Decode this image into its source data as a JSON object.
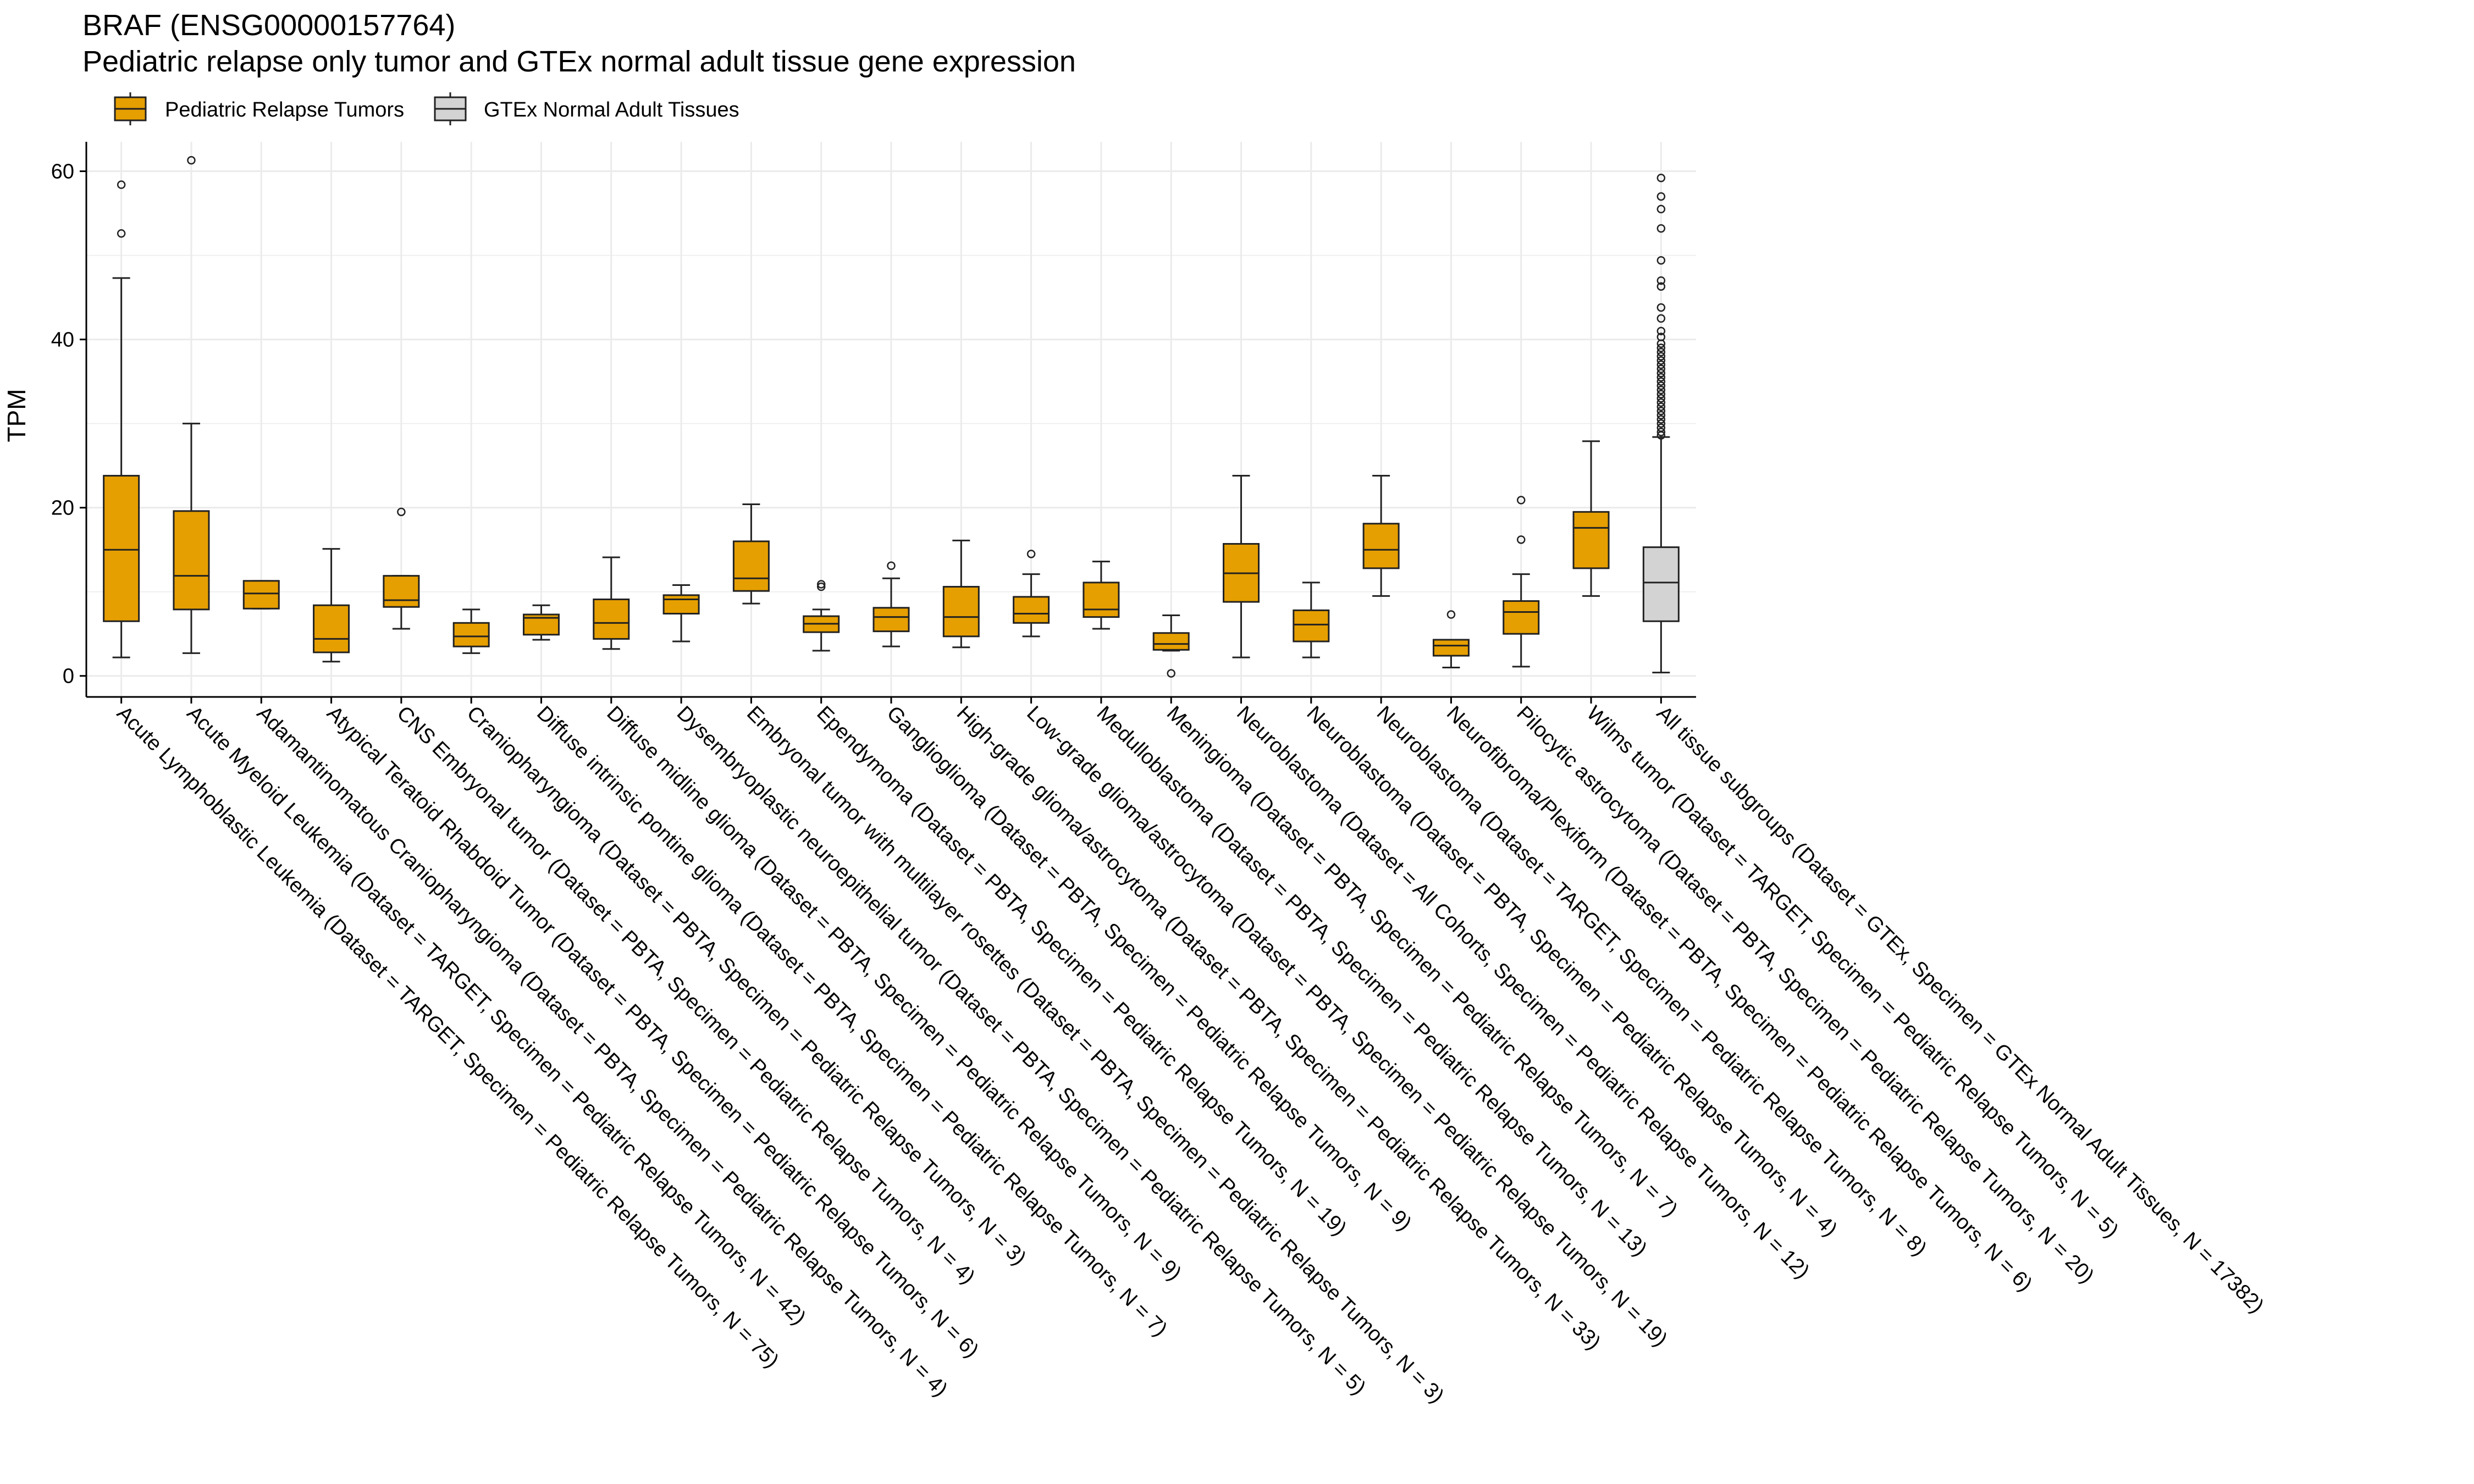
{
  "chart_data": {
    "type": "boxplot",
    "title": "BRAF (ENSG00000157764)",
    "subtitle": "Pediatric relapse only tumor and GTEx normal adult tissue gene expression",
    "xlabel": "",
    "ylabel": "TPM",
    "ylim": [
      -2.5,
      63.5
    ],
    "yticks": [
      0,
      20,
      40,
      60
    ],
    "grid": true,
    "legend_position": "top-left",
    "legend": [
      {
        "name": "Pediatric Relapse Tumors",
        "color": "#E69F00"
      },
      {
        "name": "GTEx Normal Adult Tissues",
        "color": "#D3D3D3"
      }
    ],
    "categories": [
      {
        "label": "Acute Lymphoblastic Leukemia  (Dataset = TARGET, Specimen = Pediatric Relapse Tumors, N = 75)",
        "group": "Pediatric Relapse Tumors",
        "min": 2.2,
        "q1": 6.5,
        "median": 15.0,
        "q3": 23.8,
        "max": 47.3,
        "outliers": [
          52.6,
          58.4
        ]
      },
      {
        "label": "Acute Myeloid Leukemia  (Dataset = TARGET, Specimen = Pediatric Relapse Tumors, N = 42)",
        "group": "Pediatric Relapse Tumors",
        "min": 2.7,
        "q1": 7.9,
        "median": 11.9,
        "q3": 19.6,
        "max": 30.0,
        "outliers": [
          61.3
        ]
      },
      {
        "label": "Adamantinomatous Craniopharyngioma  (Dataset = PBTA, Specimen = Pediatric Relapse Tumors, N = 4)",
        "group": "Pediatric Relapse Tumors",
        "min": 8.0,
        "q1": 8.0,
        "median": 9.8,
        "q3": 11.3,
        "max": 11.3,
        "outliers": []
      },
      {
        "label": "Atypical Teratoid Rhabdoid Tumor  (Dataset = PBTA, Specimen = Pediatric Relapse Tumors, N = 6)",
        "group": "Pediatric Relapse Tumors",
        "min": 1.7,
        "q1": 2.8,
        "median": 4.4,
        "q3": 8.4,
        "max": 15.1,
        "outliers": []
      },
      {
        "label": "CNS Embryonal tumor  (Dataset = PBTA, Specimen = Pediatric Relapse Tumors, N = 4)",
        "group": "Pediatric Relapse Tumors",
        "min": 5.6,
        "q1": 8.2,
        "median": 9.0,
        "q3": 11.9,
        "max": 11.9,
        "outliers": [
          19.5
        ]
      },
      {
        "label": "Craniopharyngioma  (Dataset = PBTA, Specimen = Pediatric Relapse Tumors, N = 3)",
        "group": "Pediatric Relapse Tumors",
        "min": 2.7,
        "q1": 3.5,
        "median": 4.7,
        "q3": 6.3,
        "max": 7.9,
        "outliers": []
      },
      {
        "label": "Diffuse intrinsic pontine glioma  (Dataset = PBTA, Specimen = Pediatric Relapse Tumors, N = 7)",
        "group": "Pediatric Relapse Tumors",
        "min": 4.3,
        "q1": 4.9,
        "median": 6.9,
        "q3": 7.3,
        "max": 8.4,
        "outliers": []
      },
      {
        "label": "Diffuse midline glioma  (Dataset = PBTA, Specimen = Pediatric Relapse Tumors, N = 9)",
        "group": "Pediatric Relapse Tumors",
        "min": 3.2,
        "q1": 4.4,
        "median": 6.3,
        "q3": 9.1,
        "max": 14.1,
        "outliers": []
      },
      {
        "label": "Dysembryoplastic neuroepithelial tumor  (Dataset = PBTA, Specimen = Pediatric Relapse Tumors, N = 5)",
        "group": "Pediatric Relapse Tumors",
        "min": 4.1,
        "q1": 7.4,
        "median": 9.1,
        "q3": 9.6,
        "max": 10.8,
        "outliers": []
      },
      {
        "label": "Embryonal tumor with multilayer rosettes  (Dataset = PBTA, Specimen = Pediatric Relapse Tumors, N = 3)",
        "group": "Pediatric Relapse Tumors",
        "min": 8.6,
        "q1": 10.1,
        "median": 11.6,
        "q3": 16.0,
        "max": 20.4,
        "outliers": []
      },
      {
        "label": "Ependymoma  (Dataset = PBTA, Specimen = Pediatric Relapse Tumors, N = 19)",
        "group": "Pediatric Relapse Tumors",
        "min": 3.0,
        "q1": 5.2,
        "median": 6.2,
        "q3": 7.1,
        "max": 7.9,
        "outliers": [
          10.6,
          10.9
        ]
      },
      {
        "label": "Ganglioglioma  (Dataset = PBTA, Specimen = Pediatric Relapse Tumors, N = 9)",
        "group": "Pediatric Relapse Tumors",
        "min": 3.5,
        "q1": 5.3,
        "median": 7.0,
        "q3": 8.1,
        "max": 11.6,
        "outliers": [
          13.1
        ]
      },
      {
        "label": "High-grade glioma/astrocytoma  (Dataset = PBTA, Specimen = Pediatric Relapse Tumors, N = 33)",
        "group": "Pediatric Relapse Tumors",
        "min": 3.4,
        "q1": 4.7,
        "median": 7.0,
        "q3": 10.6,
        "max": 16.1,
        "outliers": []
      },
      {
        "label": "Low-grade glioma/astrocytoma  (Dataset = PBTA, Specimen = Pediatric Relapse Tumors, N = 19)",
        "group": "Pediatric Relapse Tumors",
        "min": 4.7,
        "q1": 6.3,
        "median": 7.4,
        "q3": 9.4,
        "max": 12.1,
        "outliers": [
          14.5
        ]
      },
      {
        "label": "Medulloblastoma  (Dataset = PBTA, Specimen = Pediatric Relapse Tumors, N = 13)",
        "group": "Pediatric Relapse Tumors",
        "min": 5.6,
        "q1": 7.0,
        "median": 7.9,
        "q3": 11.1,
        "max": 13.6,
        "outliers": []
      },
      {
        "label": "Meningioma  (Dataset = PBTA, Specimen = Pediatric Relapse Tumors, N = 7)",
        "group": "Pediatric Relapse Tumors",
        "min": 3.0,
        "q1": 3.1,
        "median": 3.8,
        "q3": 5.1,
        "max": 7.2,
        "outliers": [
          0.3
        ]
      },
      {
        "label": "Neuroblastoma  (Dataset = All Cohorts, Specimen = Pediatric Relapse Tumors, N = 12)",
        "group": "Pediatric Relapse Tumors",
        "min": 2.2,
        "q1": 8.8,
        "median": 12.2,
        "q3": 15.7,
        "max": 23.8,
        "outliers": []
      },
      {
        "label": "Neuroblastoma  (Dataset = PBTA, Specimen = Pediatric Relapse Tumors, N = 4)",
        "group": "Pediatric Relapse Tumors",
        "min": 2.2,
        "q1": 4.1,
        "median": 6.1,
        "q3": 7.8,
        "max": 11.1,
        "outliers": []
      },
      {
        "label": "Neuroblastoma  (Dataset = TARGET, Specimen = Pediatric Relapse Tumors, N = 8)",
        "group": "Pediatric Relapse Tumors",
        "min": 9.5,
        "q1": 12.8,
        "median": 15.0,
        "q3": 18.1,
        "max": 23.8,
        "outliers": []
      },
      {
        "label": "Neurofibroma/Plexiform  (Dataset = PBTA, Specimen = Pediatric Relapse Tumors, N = 6)",
        "group": "Pediatric Relapse Tumors",
        "min": 1.0,
        "q1": 2.4,
        "median": 3.6,
        "q3": 4.3,
        "max": 4.3,
        "outliers": [
          7.3
        ]
      },
      {
        "label": "Pilocytic astrocytoma  (Dataset = PBTA, Specimen = Pediatric Relapse Tumors, N = 20)",
        "group": "Pediatric Relapse Tumors",
        "min": 1.1,
        "q1": 5.0,
        "median": 7.6,
        "q3": 8.9,
        "max": 12.1,
        "outliers": [
          16.2,
          20.9
        ]
      },
      {
        "label": "Wilms tumor  (Dataset = TARGET, Specimen = Pediatric Relapse Tumors, N = 5)",
        "group": "Pediatric Relapse Tumors",
        "min": 9.5,
        "q1": 12.8,
        "median": 17.6,
        "q3": 19.5,
        "max": 27.9,
        "outliers": []
      },
      {
        "label": "All tissue subgroups  (Dataset = GTEx, Specimen = GTEx Normal Adult Tissues, N = 17382)",
        "group": "GTEx Normal Adult Tissues",
        "min": 0.4,
        "q1": 6.5,
        "median": 11.1,
        "q3": 15.3,
        "max": 28.4,
        "outliers": [
          28.6,
          29.0,
          29.5,
          30.0,
          30.5,
          31.0,
          31.5,
          32.0,
          32.5,
          33.0,
          33.5,
          34.0,
          34.5,
          35.0,
          35.5,
          36.0,
          36.5,
          37.0,
          37.5,
          38.0,
          38.5,
          39.0,
          39.5,
          40.3,
          41.0,
          42.5,
          43.8,
          46.3,
          47.0,
          49.4,
          53.2,
          55.5,
          57.0,
          59.2
        ]
      }
    ]
  }
}
